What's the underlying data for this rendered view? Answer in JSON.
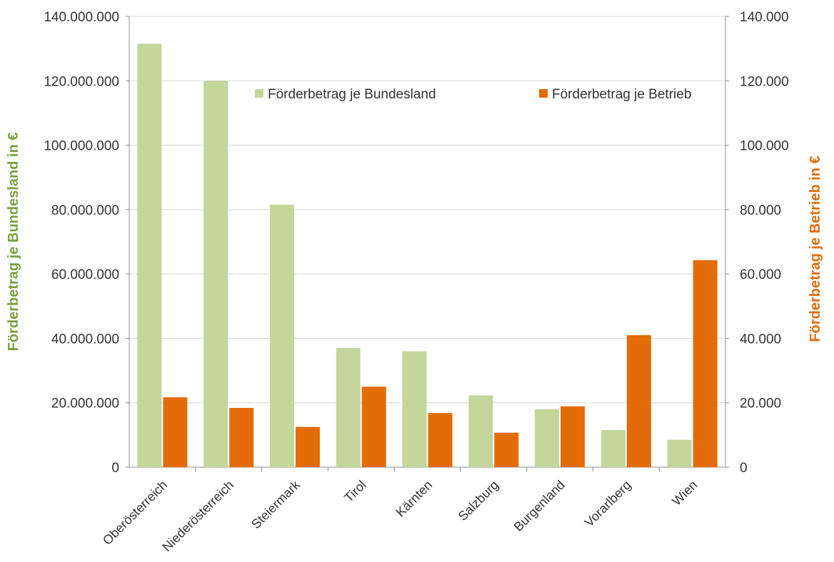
{
  "chart_data": {
    "type": "bar",
    "categories": [
      "Oberösterreich",
      "Niederösterreich",
      "Steiermark",
      "Tirol",
      "Kärnten",
      "Salzburg",
      "Burgenland",
      "Vorarlberg",
      "Wien"
    ],
    "series": [
      {
        "name": "Förderbetrag je Bundesland",
        "axis": "left",
        "color": "#c3d69b",
        "values": [
          131500000,
          120000000,
          81500000,
          37000000,
          36000000,
          22300000,
          18000000,
          11500000,
          8500000
        ]
      },
      {
        "name": "Förderbetrag je Betrieb",
        "axis": "right",
        "color": "#e36c09",
        "values": [
          21700,
          18400,
          12500,
          25000,
          16800,
          10700,
          18900,
          41000,
          64300
        ]
      }
    ],
    "y_left": {
      "label": "Förderbetrag je Bundesland in €",
      "label_color": "#77a040",
      "ylim": [
        0,
        140000000
      ],
      "ticks": [
        "0",
        "20.000.000",
        "40.000.000",
        "60.000.000",
        "80.000.000",
        "100.000.000",
        "120.000.000",
        "140.000.000"
      ]
    },
    "y_right": {
      "label": "Förderbetrag je Betrieb in €",
      "label_color": "#e36c09",
      "ylim": [
        0,
        140000
      ],
      "ticks": [
        "0",
        "20.000",
        "40.000",
        "60.000",
        "80.000",
        "100.000",
        "120.000",
        "140.000"
      ]
    },
    "grid": true,
    "legend": "top"
  }
}
